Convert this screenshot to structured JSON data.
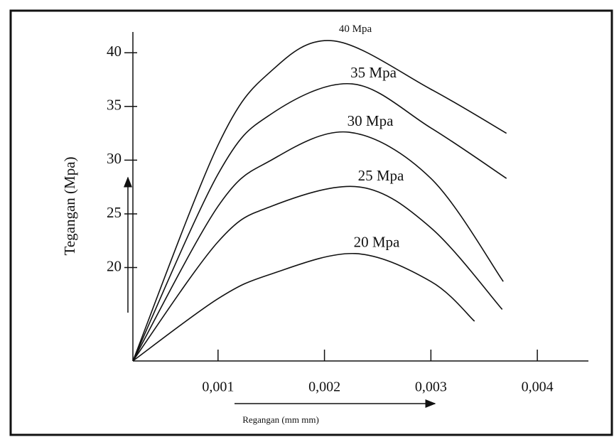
{
  "chart_data": {
    "type": "line",
    "x_label": "Regangan (mm mm)",
    "y_label": "Tegangan (Mpa)",
    "xlim": [
      0.0002,
      0.00448
    ],
    "ylim": [
      11.3,
      42
    ],
    "xticks": [
      {
        "value": 0.001,
        "label": "0,001"
      },
      {
        "value": 0.002,
        "label": "0,002"
      },
      {
        "value": 0.003,
        "label": "0,003"
      },
      {
        "value": 0.004,
        "label": "0,004"
      }
    ],
    "yticks": [
      20,
      25,
      30,
      35,
      40
    ],
    "color": "#111111",
    "series": [
      {
        "name": "40 Mpa",
        "x": [
          0.0002,
          0.001,
          0.0015,
          0.00209,
          0.003,
          0.00371
        ],
        "values": [
          11.3,
          31.4,
          38.3,
          41.1,
          36.6,
          32.5
        ]
      },
      {
        "name": "35 Mpa",
        "x": [
          0.0002,
          0.001,
          0.0015,
          0.00226,
          0.003,
          0.00371
        ],
        "values": [
          11.3,
          28.7,
          34.3,
          37.1,
          33.0,
          28.3
        ]
      },
      {
        "name": "30 Mpa",
        "x": [
          0.0002,
          0.001,
          0.0015,
          0.00223,
          0.003,
          0.00368
        ],
        "values": [
          11.3,
          25.7,
          30.0,
          32.6,
          28.3,
          18.7
        ]
      },
      {
        "name": "25 Mpa",
        "x": [
          0.0002,
          0.001,
          0.0015,
          0.00233,
          0.003,
          0.00367
        ],
        "values": [
          11.3,
          22.4,
          25.7,
          27.5,
          23.7,
          16.1
        ]
      },
      {
        "name": "20 Mpa",
        "x": [
          0.0002,
          0.001,
          0.0015,
          0.00229,
          0.003,
          0.00341
        ],
        "values": [
          11.3,
          17.1,
          19.4,
          21.3,
          18.7,
          15.0
        ]
      }
    ]
  }
}
